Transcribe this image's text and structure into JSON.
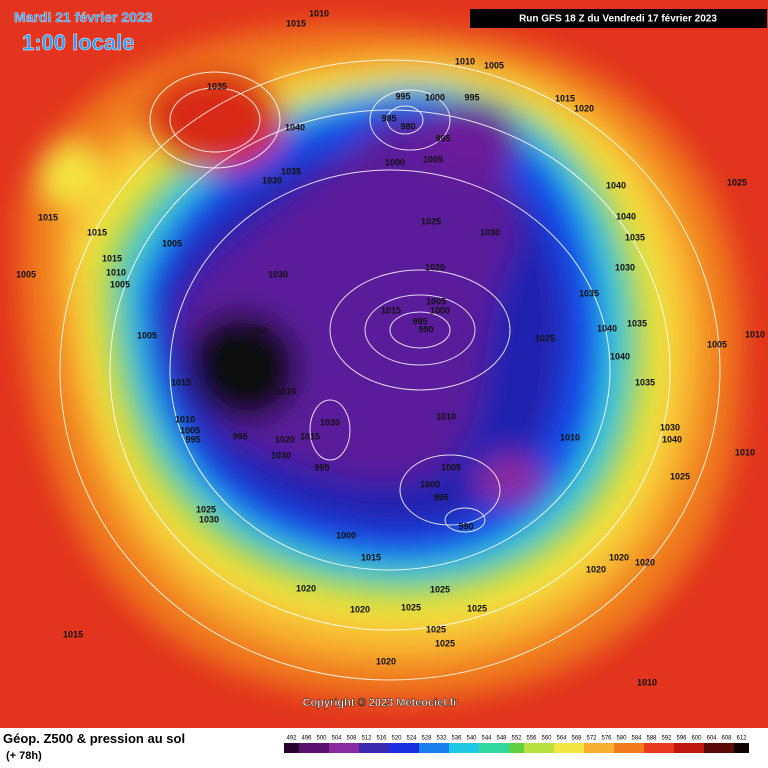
{
  "header": {
    "date": "Mardi 21 février 2023",
    "time": "1:00 locale",
    "run": "Run GFS 18 Z du Vendredi 17 février 2023"
  },
  "copyright": "Copyright © 2023 Meteociel.fr",
  "footer": {
    "title": "Géop. Z500 & pression au sol",
    "lead": "(+ 78h)"
  },
  "scale": [
    492,
    496,
    500,
    504,
    508,
    512,
    516,
    520,
    524,
    528,
    532,
    536,
    540,
    544,
    548,
    552,
    556,
    560,
    564,
    568,
    572,
    576,
    580,
    584,
    588,
    592,
    596,
    600,
    604,
    608,
    612
  ],
  "pressure_labels": [
    1010,
    1015,
    1010,
    1005,
    1035,
    995,
    1000,
    995,
    1015,
    1020,
    985,
    980,
    1040,
    995,
    1000,
    1005,
    1035,
    1030,
    1040,
    1025,
    1015,
    1015,
    1005,
    1025,
    1030,
    1040,
    1035,
    1015,
    1010,
    1005,
    1005,
    1030,
    1020,
    1030,
    1035,
    1005,
    1000,
    1015,
    995,
    990,
    1040,
    1035,
    1010,
    1005,
    1025,
    1010,
    1005,
    1040,
    1015,
    1010,
    1035,
    1010,
    1030,
    1010,
    1005,
    995,
    995,
    1020,
    1015,
    1030,
    1040,
    1010,
    1010,
    1030,
    995,
    1005,
    1000,
    1025,
    995,
    1025,
    1030,
    990,
    1000,
    1015,
    1020,
    1020,
    1020,
    1020,
    1025,
    1020,
    1025,
    1025,
    1025,
    1015,
    1025,
    1020,
    1010
  ]
}
